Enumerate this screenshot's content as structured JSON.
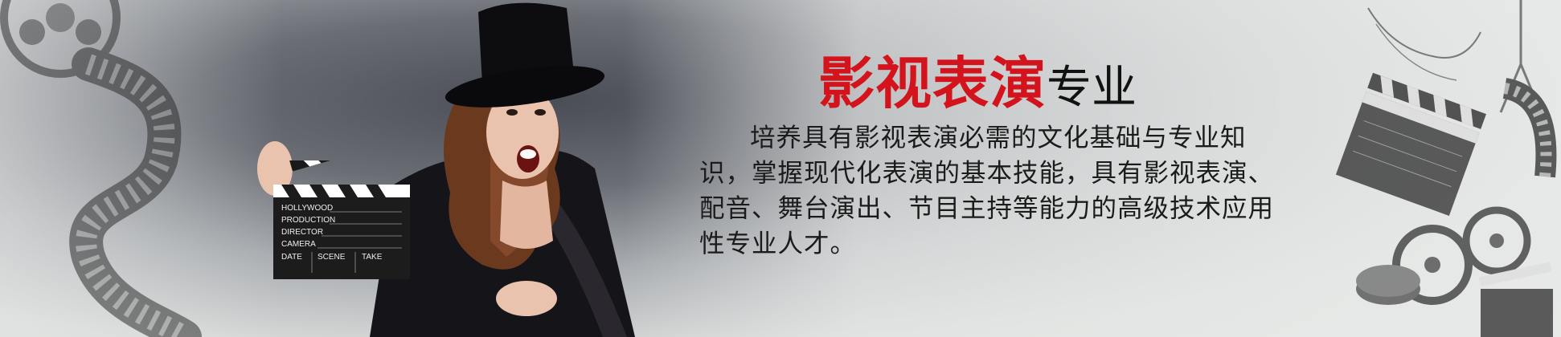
{
  "banner": {
    "title_highlight": "影视表演",
    "title_rest": "专业",
    "description": "培养具有影视表演必需的文化基础与专业知识，掌握现代化表演的基本技能，具有影视表演、配音、舞台演出、节目主持等能力的高级技术应用性专业人才。",
    "accent_color": "#d4141c"
  },
  "clapperboard": {
    "line1": "HOLLYWOOD",
    "line2": "PRODUCTION",
    "line3": "DIRECTOR",
    "line4": "CAMERA",
    "col1": "DATE",
    "col2": "SCENE",
    "col3": "TAKE"
  }
}
